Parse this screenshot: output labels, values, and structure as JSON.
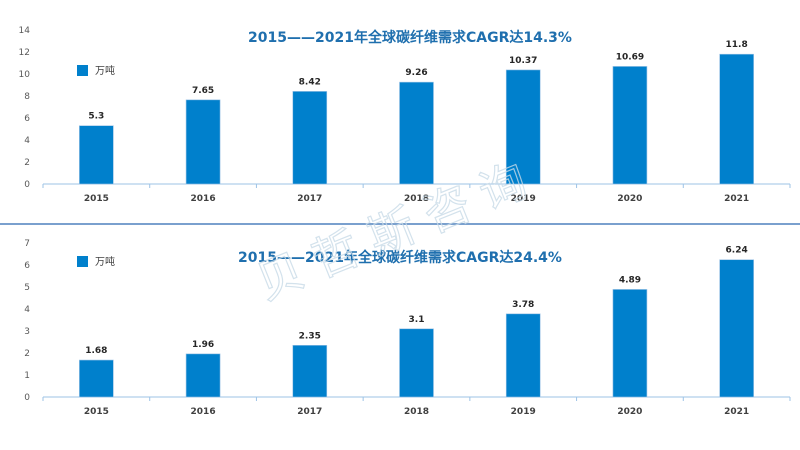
{
  "watermark": "贝哲斯咨询",
  "chart_data": [
    {
      "type": "bar",
      "title": "2015——2021年全球碳纤维需求CAGR达14.3%",
      "legend": "万吨",
      "legend_position": "top-left",
      "categories": [
        "2015",
        "2016",
        "2017",
        "2018",
        "2019",
        "2020",
        "2021"
      ],
      "values": [
        5.3,
        7.65,
        8.42,
        9.26,
        10.37,
        10.69,
        11.8
      ],
      "value_labels": [
        "5.3",
        "7.65",
        "8.42",
        "9.26",
        "10.37",
        "10.69",
        "11.8"
      ],
      "yticks": [
        "0",
        "2",
        "4",
        "6",
        "8",
        "10",
        "12",
        "14"
      ],
      "ylim": [
        0,
        14
      ],
      "color": "#0080cc",
      "grid": false
    },
    {
      "type": "bar",
      "title": "2015——2021年全球碳纤维需求CAGR达24.4%",
      "legend": "万吨",
      "legend_position": "top-left",
      "categories": [
        "2015",
        "2016",
        "2017",
        "2018",
        "2019",
        "2020",
        "2021"
      ],
      "values": [
        1.68,
        1.96,
        2.35,
        3.1,
        3.78,
        4.89,
        6.24
      ],
      "value_labels": [
        "1.68",
        "1.96",
        "2.35",
        "3.1",
        "3.78",
        "4.89",
        "6.24"
      ],
      "yticks": [
        "0",
        "1",
        "2",
        "3",
        "4",
        "5",
        "6",
        "7"
      ],
      "ylim": [
        0,
        7
      ],
      "color": "#0080cc",
      "grid": false
    }
  ]
}
